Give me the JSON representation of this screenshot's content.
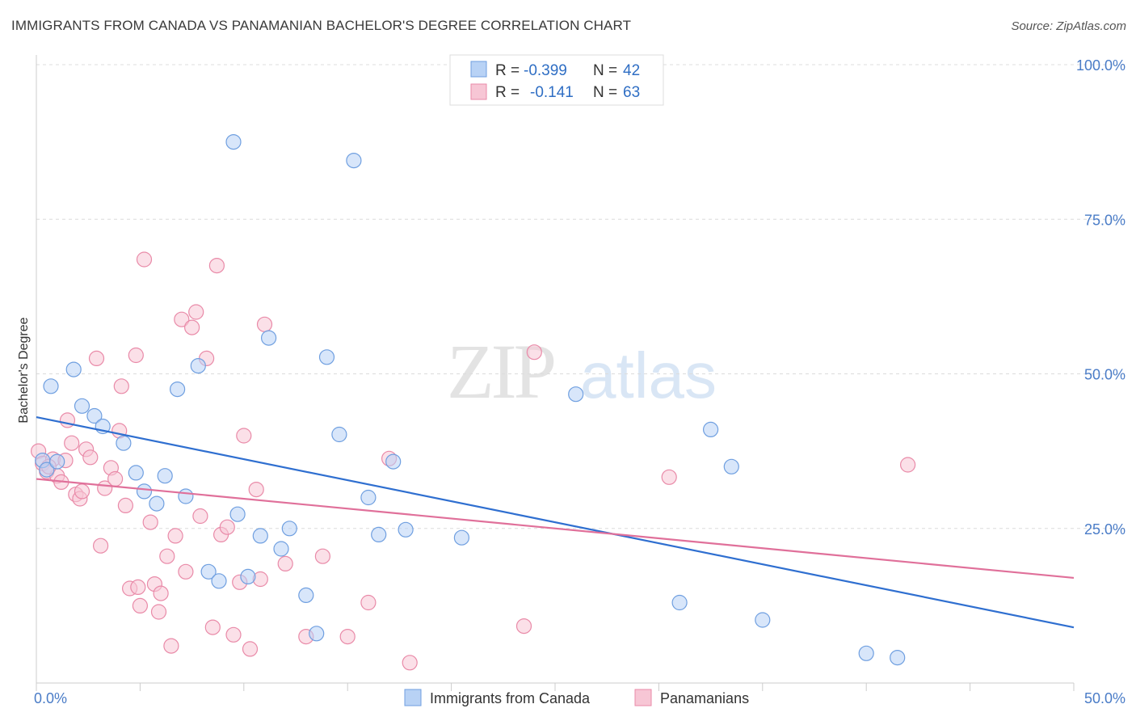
{
  "title": "IMMIGRANTS FROM CANADA VS PANAMANIAN BACHELOR'S DEGREE CORRELATION CHART",
  "source": "Source: ZipAtlas.com",
  "watermark": {
    "zip": "ZIP",
    "atlas": "atlas"
  },
  "colors": {
    "canada": "#6f9fe0",
    "canada_fill": "#b8d2f5",
    "canada_line": "#2f6fd0",
    "panama": "#e98aa8",
    "panama_fill": "#f7c6d5",
    "panama_line": "#e0709a",
    "tick": "#4a7cc7"
  },
  "legend": {
    "rows": [
      {
        "r_label": "R =",
        "r_value": "-0.399",
        "n_label": "N =",
        "n_value": "42"
      },
      {
        "r_label": "R =",
        "r_value": "-0.141",
        "n_label": "N =",
        "n_value": "63"
      }
    ]
  },
  "chart_data": {
    "type": "scatter",
    "title": "IMMIGRANTS FROM CANADA VS PANAMANIAN BACHELOR'S DEGREE CORRELATION CHART",
    "xlabel": "",
    "ylabel": "Bachelor's Degree",
    "xlim": [
      0,
      50
    ],
    "ylim": [
      0,
      100
    ],
    "x_tick_labels": [
      "0.0%",
      "50.0%"
    ],
    "y_tick_labels": [
      "25.0%",
      "50.0%",
      "75.0%",
      "100.0%"
    ],
    "y_ticks": [
      25,
      50,
      75,
      100
    ],
    "grid": true,
    "legend_position": "top-center",
    "series": [
      {
        "name": "Immigrants from Canada",
        "color": "#6f9fe0",
        "trend": {
          "x": [
            0,
            50
          ],
          "y": [
            43.0,
            9.0
          ]
        },
        "points": [
          [
            0.3,
            36.0
          ],
          [
            0.5,
            34.5
          ],
          [
            0.7,
            48.0
          ],
          [
            1.8,
            50.7
          ],
          [
            2.2,
            44.8
          ],
          [
            2.8,
            43.2
          ],
          [
            3.2,
            41.5
          ],
          [
            4.2,
            38.8
          ],
          [
            4.8,
            34.0
          ],
          [
            5.2,
            31.0
          ],
          [
            5.8,
            29.0
          ],
          [
            6.2,
            33.5
          ],
          [
            6.8,
            47.5
          ],
          [
            7.2,
            30.2
          ],
          [
            7.8,
            51.3
          ],
          [
            8.3,
            18.0
          ],
          [
            8.8,
            16.5
          ],
          [
            9.5,
            87.5
          ],
          [
            9.7,
            27.3
          ],
          [
            10.2,
            17.2
          ],
          [
            10.8,
            23.8
          ],
          [
            11.2,
            55.8
          ],
          [
            11.8,
            21.7
          ],
          [
            12.2,
            25.0
          ],
          [
            13.0,
            14.2
          ],
          [
            13.5,
            8.0
          ],
          [
            14.0,
            52.7
          ],
          [
            14.6,
            40.2
          ],
          [
            15.3,
            84.5
          ],
          [
            16.0,
            30.0
          ],
          [
            16.5,
            24.0
          ],
          [
            17.2,
            35.8
          ],
          [
            17.8,
            24.8
          ],
          [
            20.5,
            23.5
          ],
          [
            26.0,
            46.7
          ],
          [
            31.0,
            13.0
          ],
          [
            32.5,
            41.0
          ],
          [
            33.5,
            35.0
          ],
          [
            35.0,
            10.2
          ],
          [
            40.0,
            4.8
          ],
          [
            41.5,
            4.1
          ],
          [
            1.0,
            35.8
          ]
        ]
      },
      {
        "name": "Panamanians",
        "color": "#e98aa8",
        "trend": {
          "x": [
            0,
            50
          ],
          "y": [
            33.0,
            17.0
          ]
        },
        "points": [
          [
            0.1,
            37.5
          ],
          [
            0.3,
            35.5
          ],
          [
            0.5,
            34.2
          ],
          [
            0.8,
            36.2
          ],
          [
            1.0,
            33.5
          ],
          [
            1.2,
            32.5
          ],
          [
            1.5,
            42.5
          ],
          [
            1.7,
            38.8
          ],
          [
            1.9,
            30.5
          ],
          [
            2.1,
            29.8
          ],
          [
            2.4,
            37.8
          ],
          [
            2.6,
            36.5
          ],
          [
            2.9,
            52.5
          ],
          [
            3.1,
            22.2
          ],
          [
            3.3,
            31.5
          ],
          [
            3.6,
            34.8
          ],
          [
            3.8,
            33.0
          ],
          [
            4.0,
            40.8
          ],
          [
            4.1,
            48.0
          ],
          [
            4.3,
            28.7
          ],
          [
            4.5,
            15.3
          ],
          [
            4.8,
            53.0
          ],
          [
            4.9,
            15.5
          ],
          [
            5.0,
            12.5
          ],
          [
            5.2,
            68.5
          ],
          [
            5.5,
            26.0
          ],
          [
            5.7,
            16.0
          ],
          [
            5.9,
            11.5
          ],
          [
            6.0,
            14.5
          ],
          [
            6.3,
            20.5
          ],
          [
            6.5,
            6.0
          ],
          [
            6.7,
            23.8
          ],
          [
            7.0,
            58.8
          ],
          [
            7.2,
            18.0
          ],
          [
            7.5,
            57.5
          ],
          [
            7.7,
            60.0
          ],
          [
            7.9,
            27.0
          ],
          [
            8.2,
            52.5
          ],
          [
            8.5,
            9.0
          ],
          [
            8.7,
            67.5
          ],
          [
            8.9,
            24.0
          ],
          [
            9.2,
            25.2
          ],
          [
            9.5,
            7.8
          ],
          [
            9.8,
            16.3
          ],
          [
            10.0,
            40.0
          ],
          [
            10.3,
            5.5
          ],
          [
            10.6,
            31.3
          ],
          [
            10.8,
            16.8
          ],
          [
            11.0,
            58.0
          ],
          [
            12.0,
            19.3
          ],
          [
            13.0,
            7.5
          ],
          [
            13.8,
            20.5
          ],
          [
            15.0,
            7.5
          ],
          [
            16.0,
            13.0
          ],
          [
            17.0,
            36.3
          ],
          [
            18.0,
            3.3
          ],
          [
            23.5,
            9.2
          ],
          [
            24.0,
            53.5
          ],
          [
            30.5,
            33.3
          ],
          [
            42.0,
            35.3
          ],
          [
            1.4,
            36.0
          ],
          [
            2.2,
            31.0
          ],
          [
            0.6,
            35.0
          ]
        ]
      }
    ]
  }
}
